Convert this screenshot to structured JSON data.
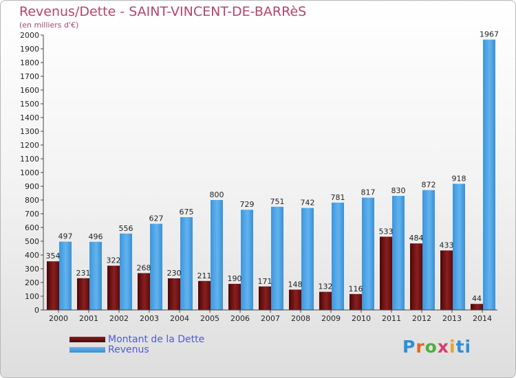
{
  "title": "Revenus/Dette - SAINT-VINCENT-DE-BARRèS",
  "subtitle": "(en milliers d'€)",
  "colors": {
    "dette": "#7a1515",
    "revenus": "#4aa3e6",
    "title": "#b5446c",
    "legend_text": "#4a5be0"
  },
  "legend": {
    "dette_label": "Montant de la Dette",
    "revenus_label": "Revenus"
  },
  "logo": {
    "text": "Proxiti",
    "letters": [
      "P",
      "r",
      "o",
      "x",
      "i",
      "ti"
    ]
  },
  "chart_data": {
    "type": "bar",
    "title": "Revenus/Dette - SAINT-VINCENT-DE-BARRèS",
    "xlabel": "",
    "ylabel": "(en milliers d'€)",
    "ylim": [
      0,
      2000
    ],
    "yticks": [
      0,
      100,
      200,
      300,
      400,
      500,
      600,
      700,
      800,
      900,
      1000,
      1100,
      1200,
      1300,
      1400,
      1500,
      1600,
      1700,
      1800,
      1900,
      2000
    ],
    "categories": [
      "2000",
      "2001",
      "2002",
      "2003",
      "2004",
      "2005",
      "2006",
      "2007",
      "2008",
      "2009",
      "2010",
      "2011",
      "2012",
      "2013",
      "2014"
    ],
    "series": [
      {
        "name": "Montant de la Dette",
        "values": [
          354,
          231,
          322,
          268,
          230,
          211,
          190,
          171,
          148,
          132,
          116,
          533,
          484,
          433,
          44
        ]
      },
      {
        "name": "Revenus",
        "values": [
          497,
          496,
          556,
          627,
          675,
          800,
          729,
          751,
          742,
          781,
          817,
          830,
          872,
          918,
          1967
        ]
      }
    ]
  }
}
